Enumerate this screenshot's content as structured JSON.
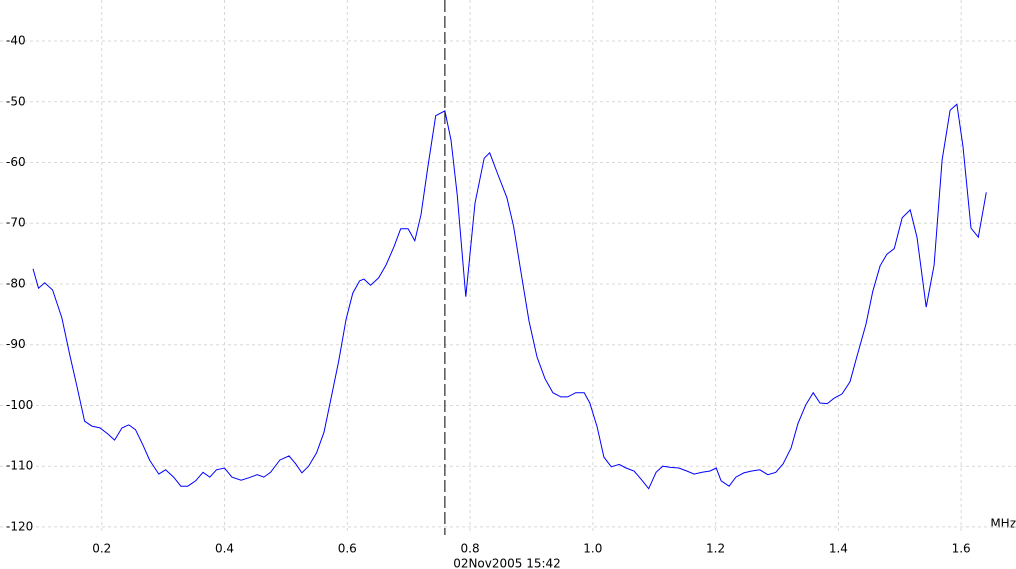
{
  "chart_data": {
    "type": "line",
    "x_label": "MHz",
    "annotation": "02Nov2005  15:42",
    "marker_x": 0.759,
    "grid": true,
    "xlim": [
      0.088,
      1.647
    ],
    "ylim": [
      -121,
      -33
    ],
    "xticks": [
      0.2,
      0.4,
      0.6,
      0.8,
      {
        "value": 1,
        "label": "1.0"
      },
      1.2,
      1.4,
      1.6
    ],
    "yticks": [
      -40,
      -50,
      -60,
      -70,
      -80,
      -90,
      -100,
      -110,
      -120
    ],
    "x": [
      0.088,
      0.097,
      0.107,
      0.12,
      0.135,
      0.148,
      0.159,
      0.172,
      0.184,
      0.197,
      0.21,
      0.221,
      0.233,
      0.244,
      0.255,
      0.267,
      0.278,
      0.293,
      0.304,
      0.317,
      0.329,
      0.34,
      0.353,
      0.365,
      0.376,
      0.387,
      0.4,
      0.412,
      0.427,
      0.44,
      0.453,
      0.464,
      0.475,
      0.49,
      0.505,
      0.516,
      0.526,
      0.537,
      0.55,
      0.562,
      0.573,
      0.586,
      0.598,
      0.609,
      0.62,
      0.627,
      0.638,
      0.651,
      0.663,
      0.676,
      0.687,
      0.699,
      0.71,
      0.72,
      0.731,
      0.744,
      0.759,
      0.769,
      0.779,
      0.793,
      0.808,
      0.823,
      0.832,
      0.845,
      0.86,
      0.871,
      0.884,
      0.896,
      0.909,
      0.922,
      0.935,
      0.948,
      0.959,
      0.972,
      0.986,
      0.995,
      1.007,
      1.018,
      1.03,
      1.043,
      1.054,
      1.067,
      1.08,
      1.091,
      1.103,
      1.114,
      1.127,
      1.14,
      1.153,
      1.165,
      1.178,
      1.191,
      1.201,
      1.209,
      1.222,
      1.233,
      1.246,
      1.259,
      1.272,
      1.285,
      1.298,
      1.31,
      1.323,
      1.334,
      1.347,
      1.359,
      1.37,
      1.382,
      1.393,
      1.406,
      1.419,
      1.43,
      1.445,
      1.456,
      1.468,
      1.479,
      1.491,
      1.504,
      1.517,
      1.528,
      1.543,
      1.556,
      1.569,
      1.582,
      1.593,
      1.603,
      1.616,
      1.628,
      1.641
    ],
    "series": [
      {
        "color": "#0000ff",
        "values": [
          -77.5,
          -80.7,
          -79.8,
          -81,
          -85.6,
          -91.7,
          -96.6,
          -102.6,
          -103.4,
          -103.7,
          -104.7,
          -105.7,
          -103.7,
          -103.2,
          -104,
          -106.5,
          -109,
          -111.3,
          -110.6,
          -111.8,
          -113.3,
          -113.3,
          -112.4,
          -111,
          -111.8,
          -110.6,
          -110.3,
          -111.8,
          -112.3,
          -111.9,
          -111.4,
          -111.8,
          -111,
          -109,
          -108.3,
          -109.6,
          -111.1,
          -110,
          -107.8,
          -104.4,
          -99.1,
          -92.7,
          -85.8,
          -81.5,
          -79.5,
          -79.2,
          -80.2,
          -79,
          -76.9,
          -73.9,
          -70.9,
          -70.9,
          -72.9,
          -68.6,
          -60.9,
          -52.3,
          -51.5,
          -56.3,
          -65.3,
          -82.1,
          -66.7,
          -59.3,
          -58.4,
          -61.9,
          -65.8,
          -70.5,
          -78.7,
          -86.1,
          -92,
          -95.6,
          -97.9,
          -98.6,
          -98.6,
          -97.9,
          -97.9,
          -99.6,
          -103.5,
          -108.5,
          -110.1,
          -109.7,
          -110.3,
          -110.8,
          -112.3,
          -113.7,
          -111,
          -110,
          -110.2,
          -110.3,
          -110.8,
          -111.3,
          -111,
          -110.8,
          -110.3,
          -112.4,
          -113.3,
          -111.8,
          -111.1,
          -110.8,
          -110.6,
          -111.4,
          -111,
          -109.6,
          -107,
          -103,
          -99.9,
          -97.9,
          -99.6,
          -99.7,
          -98.8,
          -98.1,
          -96.1,
          -92,
          -86.6,
          -81.2,
          -77,
          -75.1,
          -74.2,
          -69.1,
          -67.8,
          -72.3,
          -83.8,
          -76.9,
          -59.6,
          -51.4,
          -50.4,
          -57.4,
          -70.8,
          -72.3,
          -64.9
        ]
      }
    ]
  }
}
